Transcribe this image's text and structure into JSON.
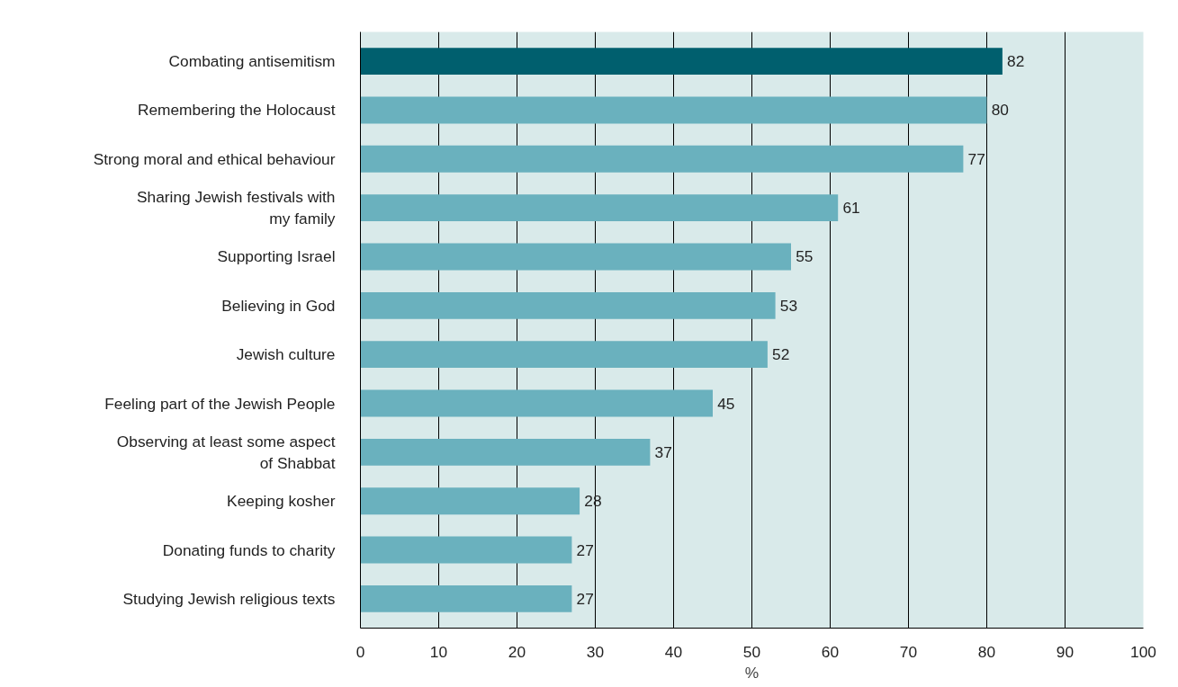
{
  "chart_data": {
    "type": "bar",
    "orientation": "horizontal",
    "xlabel": "%",
    "categories": [
      "Combating antisemitism",
      "Remembering the Holocaust",
      "Strong moral and ethical behaviour",
      "Sharing Jewish festivals with\nmy family",
      "Supporting Israel",
      "Believing in God",
      "Jewish culture",
      "Feeling part of the Jewish People",
      "Observing at least some aspect\nof Shabbat",
      "Keeping kosher",
      "Donating funds to charity",
      "Studying Jewish religious texts"
    ],
    "values": [
      82,
      80,
      77,
      61,
      55,
      53,
      52,
      45,
      37,
      28,
      27,
      27
    ],
    "colors": [
      "#005f6e",
      "#6ab1be",
      "#6ab1be",
      "#6ab1be",
      "#6ab1be",
      "#6ab1be",
      "#6ab1be",
      "#6ab1be",
      "#6ab1be",
      "#6ab1be",
      "#6ab1be",
      "#6ab1be"
    ],
    "xlim": [
      0,
      100
    ],
    "xticks": [
      0,
      10,
      20,
      30,
      40,
      50,
      60,
      70,
      80,
      90,
      100
    ],
    "grid": "x",
    "data_labels": true
  }
}
